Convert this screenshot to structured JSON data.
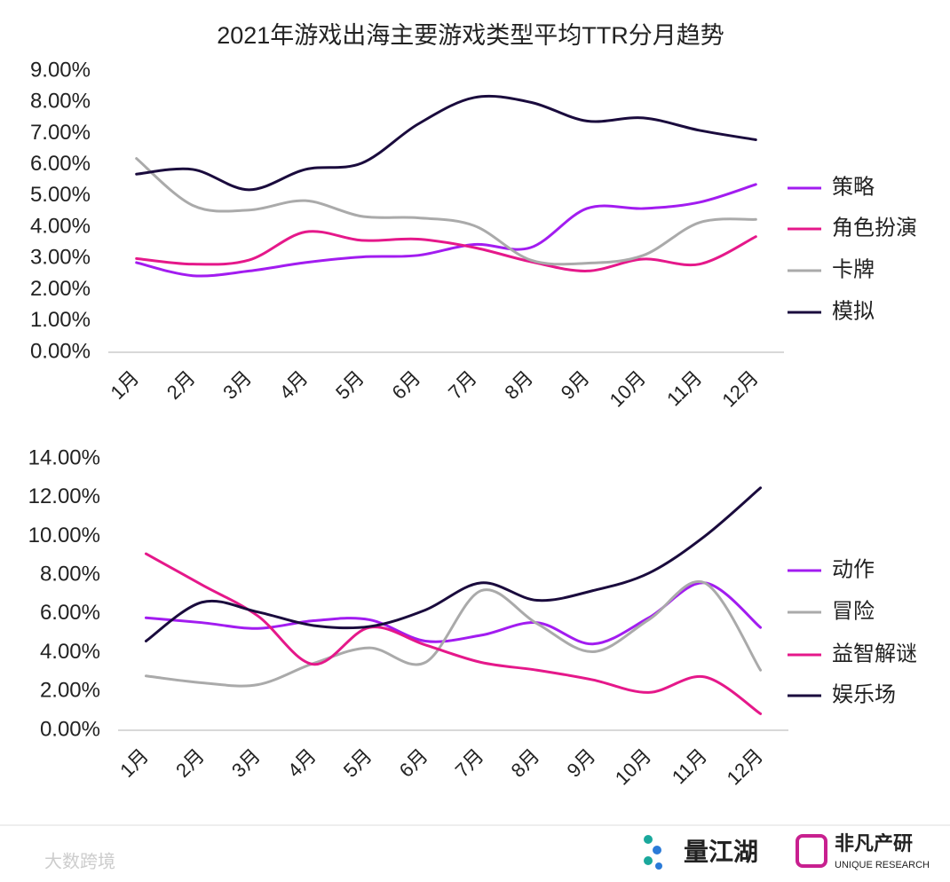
{
  "chart_data": [
    {
      "type": "line",
      "title": "2021年游戏出海主要游戏类型平均TTR分月趋势",
      "categories": [
        "1月",
        "2月",
        "3月",
        "4月",
        "5月",
        "6月",
        "7月",
        "8月",
        "9月",
        "10月",
        "11月",
        "12月"
      ],
      "ylim": [
        0,
        9
      ],
      "yticks": [
        {
          "value": 0,
          "label": "0.00%"
        },
        {
          "value": 1,
          "label": "1.00%"
        },
        {
          "value": 2,
          "label": "2.00%"
        },
        {
          "value": 3,
          "label": "3.00%"
        },
        {
          "value": 4,
          "label": "4.00%"
        },
        {
          "value": 5,
          "label": "5.00%"
        },
        {
          "value": 6,
          "label": "6.00%"
        },
        {
          "value": 7,
          "label": "7.00%"
        },
        {
          "value": 8,
          "label": "8.00%"
        },
        {
          "value": 9,
          "label": "9.00%"
        }
      ],
      "grid": false,
      "legend": "right",
      "series": [
        {
          "name": "策略",
          "color": "#a21cf0",
          "values": [
            2.87,
            2.45,
            2.6,
            2.87,
            3.05,
            3.1,
            3.45,
            3.35,
            4.6,
            4.6,
            4.8,
            5.37
          ]
        },
        {
          "name": "角色扮演",
          "color": "#e5188a",
          "values": [
            3.0,
            2.82,
            2.95,
            3.85,
            3.58,
            3.62,
            3.35,
            2.9,
            2.6,
            2.98,
            2.82,
            3.7
          ]
        },
        {
          "name": "卡牌",
          "color": "#aaaaaa",
          "values": [
            6.2,
            4.7,
            4.55,
            4.85,
            4.35,
            4.3,
            4.05,
            2.95,
            2.85,
            3.1,
            4.15,
            4.25
          ]
        },
        {
          "name": "模拟",
          "color": "#1a0b3d",
          "values": [
            5.7,
            5.85,
            5.2,
            5.85,
            6.05,
            7.3,
            8.15,
            8.0,
            7.4,
            7.5,
            7.1,
            6.8
          ]
        }
      ]
    },
    {
      "type": "line",
      "categories": [
        "1月",
        "2月",
        "3月",
        "4月",
        "5月",
        "6月",
        "7月",
        "8月",
        "9月",
        "10月",
        "11月",
        "12月"
      ],
      "ylim": [
        0,
        14
      ],
      "yticks": [
        {
          "value": 0,
          "label": "0.00%"
        },
        {
          "value": 2,
          "label": "2.00%"
        },
        {
          "value": 4,
          "label": "4.00%"
        },
        {
          "value": 6,
          "label": "6.00%"
        },
        {
          "value": 8,
          "label": "8.00%"
        },
        {
          "value": 10,
          "label": "10.00%"
        },
        {
          "value": 12,
          "label": "12.00%"
        },
        {
          "value": 14,
          "label": "14.00%"
        }
      ],
      "grid": false,
      "legend": "right",
      "series": [
        {
          "name": "动作",
          "color": "#a21cf0",
          "values": [
            5.8,
            5.55,
            5.25,
            5.65,
            5.7,
            4.6,
            4.9,
            5.55,
            4.45,
            5.8,
            7.6,
            5.3
          ]
        },
        {
          "name": "冒险",
          "color": "#aaaaaa",
          "values": [
            2.8,
            2.45,
            2.35,
            3.45,
            4.25,
            3.5,
            7.2,
            5.5,
            4.05,
            5.7,
            7.6,
            3.1
          ]
        },
        {
          "name": "益智解谜",
          "color": "#e5188a",
          "values": [
            9.1,
            7.5,
            5.9,
            3.4,
            5.3,
            4.4,
            3.5,
            3.1,
            2.6,
            1.95,
            2.75,
            0.85
          ]
        },
        {
          "name": "娱乐场",
          "color": "#1a0b3d",
          "values": [
            4.6,
            6.6,
            6.1,
            5.4,
            5.35,
            6.2,
            7.6,
            6.7,
            7.2,
            8.1,
            10.0,
            12.5
          ]
        }
      ]
    }
  ],
  "footer": {
    "watermark": "大数跨境",
    "logo1": "量江湖",
    "logo2": "非凡产研",
    "logo2_sub": "UNIQUE RESEARCH"
  }
}
